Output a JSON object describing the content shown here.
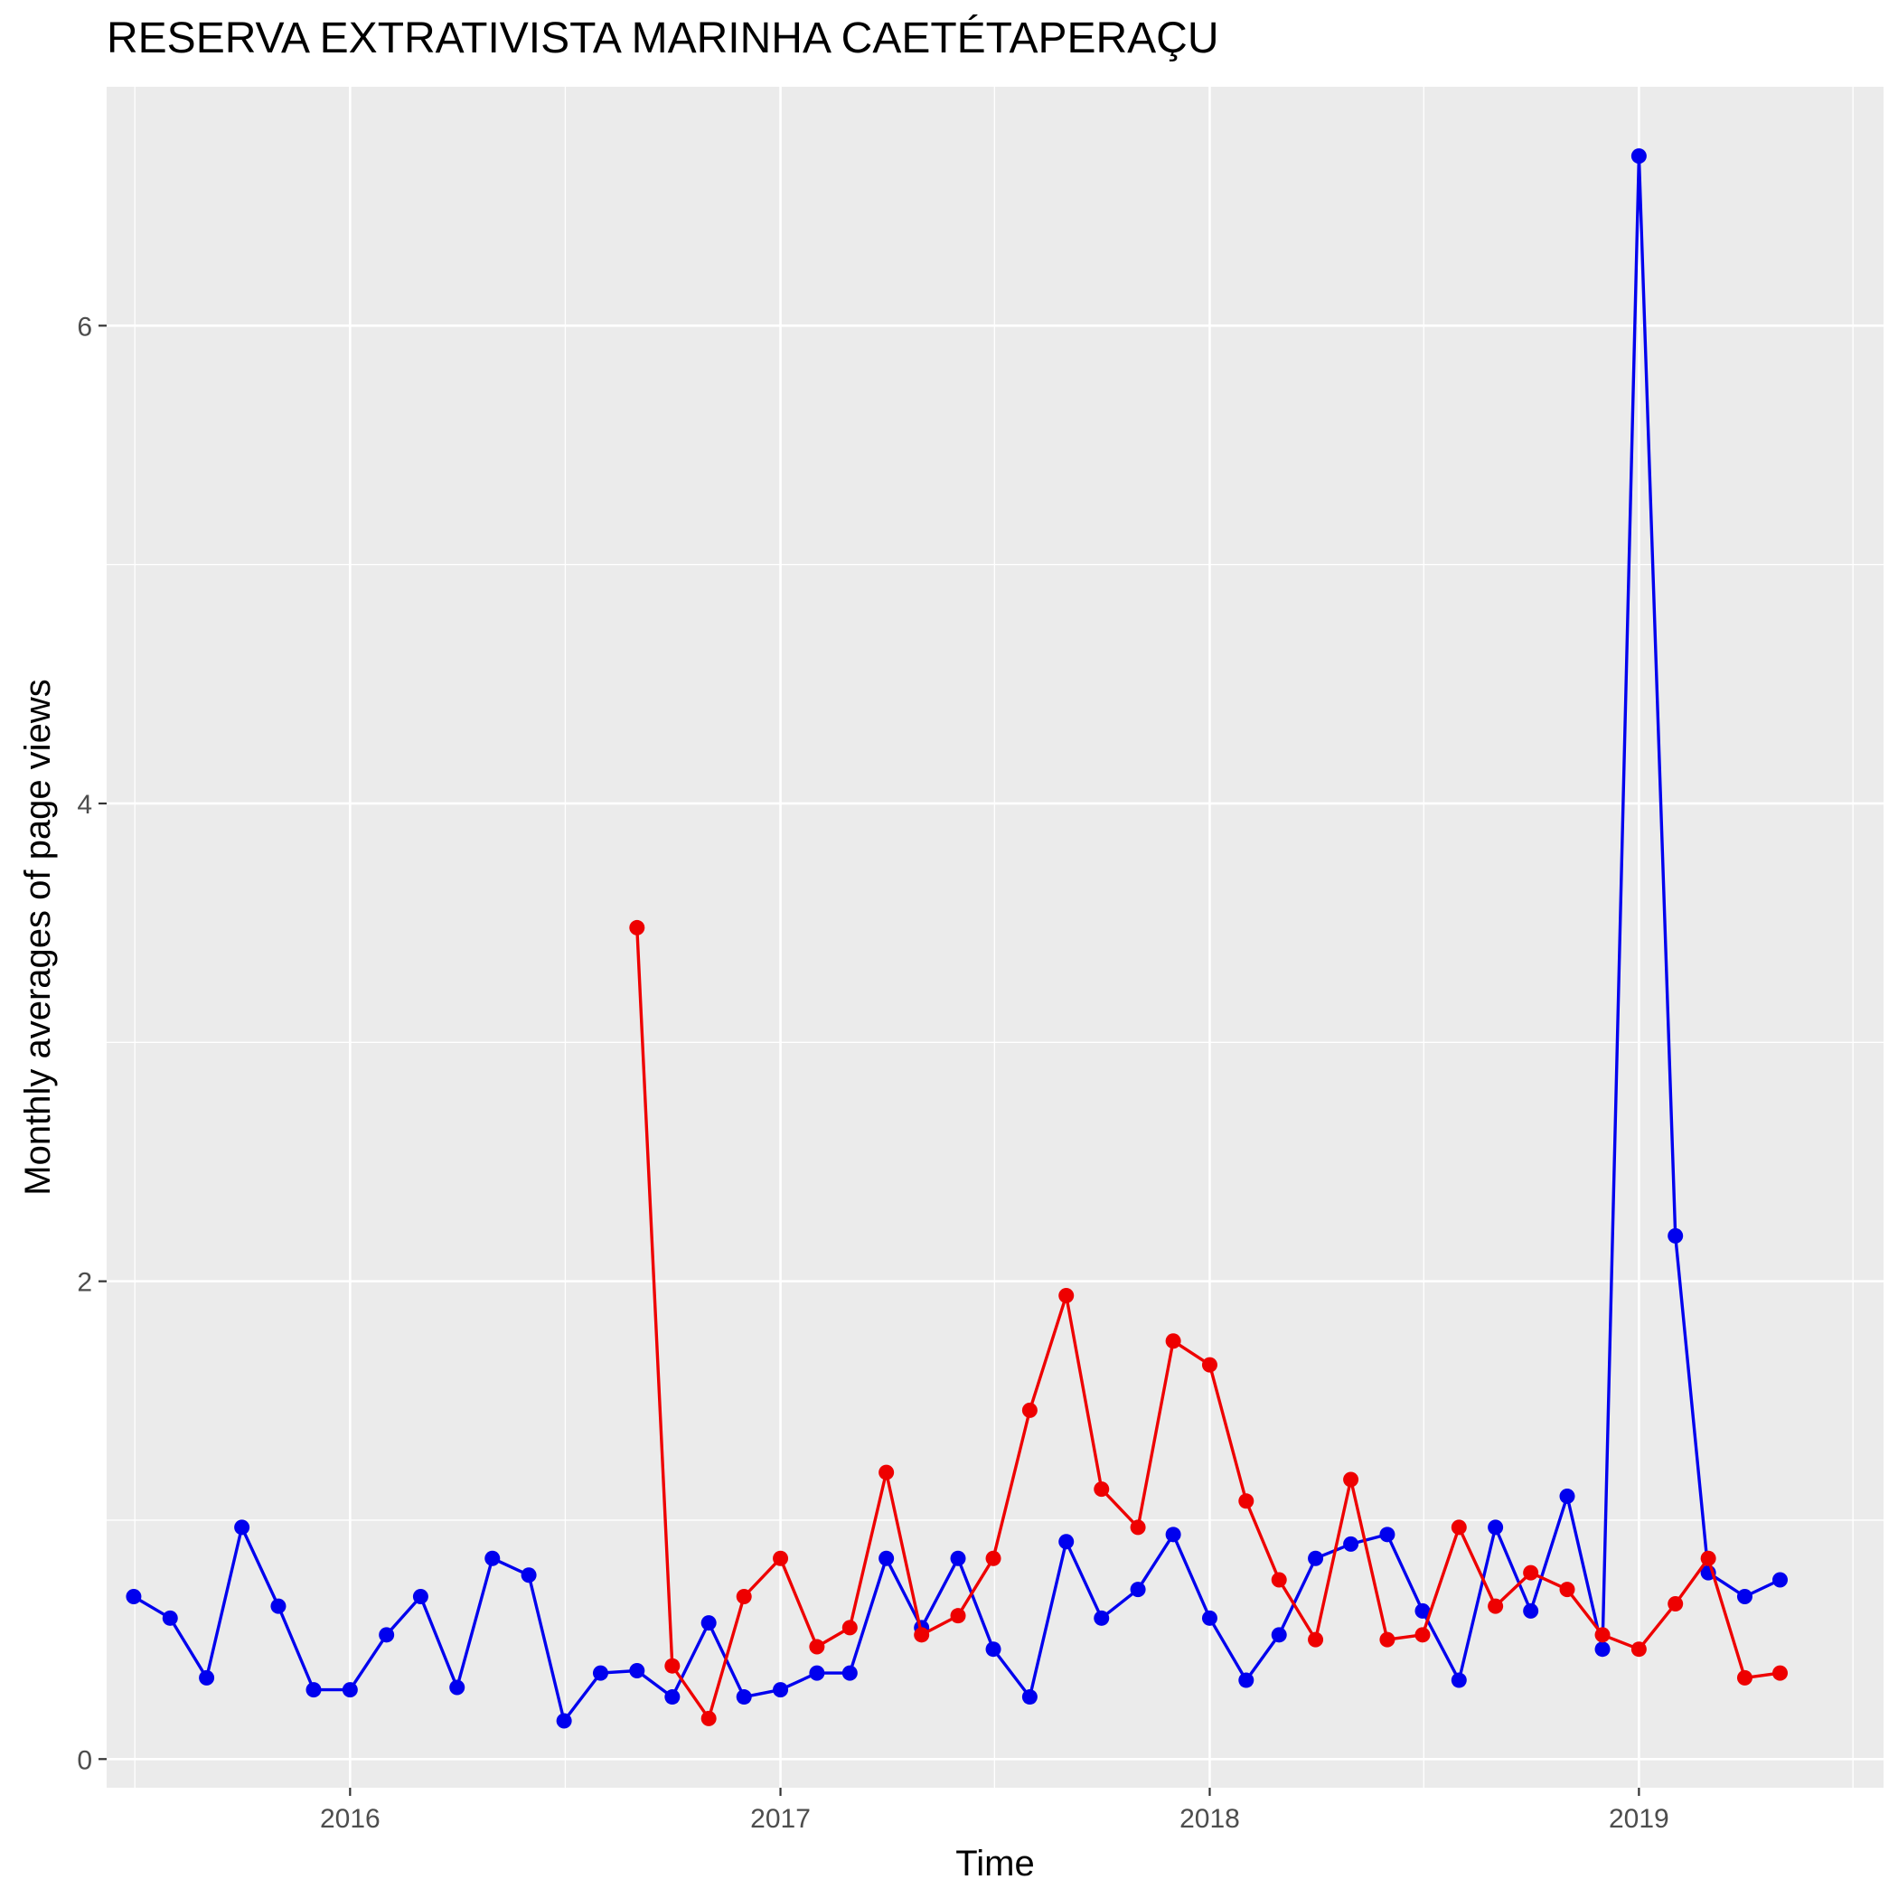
{
  "chart_data": {
    "type": "line",
    "title": "RESERVA EXTRATIVISTA MARINHA CAETÉTAPERAÇU",
    "xlabel": "Time",
    "ylabel": "Monthly averages of page views",
    "x_ticks": [
      "2016",
      "2017",
      "2018",
      "2019"
    ],
    "y_ticks": [
      "0",
      "2",
      "4",
      "6"
    ],
    "xlim": [
      "2015-06-08",
      "2019-07-28"
    ],
    "ylim": [
      -0.12,
      7.0
    ],
    "grid": true,
    "legend": "none",
    "series": [
      {
        "color": "#0000ee",
        "points": [
          [
            "2015-07-01",
            0.68
          ],
          [
            "2015-08-01",
            0.59
          ],
          [
            "2015-09-01",
            0.34
          ],
          [
            "2015-10-01",
            0.97
          ],
          [
            "2015-11-01",
            0.64
          ],
          [
            "2015-12-01",
            0.29
          ],
          [
            "2016-01-01",
            0.29
          ],
          [
            "2016-02-01",
            0.52
          ],
          [
            "2016-03-01",
            0.68
          ],
          [
            "2016-04-01",
            0.3
          ],
          [
            "2016-05-01",
            0.84
          ],
          [
            "2016-06-01",
            0.77
          ],
          [
            "2016-07-01",
            0.16
          ],
          [
            "2016-08-01",
            0.36
          ],
          [
            "2016-09-01",
            0.37
          ],
          [
            "2016-10-01",
            0.26
          ],
          [
            "2016-11-01",
            0.57
          ],
          [
            "2016-12-01",
            0.26
          ],
          [
            "2017-01-01",
            0.29
          ],
          [
            "2017-02-01",
            0.36
          ],
          [
            "2017-03-01",
            0.36
          ],
          [
            "2017-04-01",
            0.84
          ],
          [
            "2017-05-01",
            0.55
          ],
          [
            "2017-06-01",
            0.84
          ],
          [
            "2017-07-01",
            0.46
          ],
          [
            "2017-08-01",
            0.26
          ],
          [
            "2017-09-01",
            0.91
          ],
          [
            "2017-10-01",
            0.59
          ],
          [
            "2017-11-01",
            0.71
          ],
          [
            "2017-12-01",
            0.94
          ],
          [
            "2018-01-01",
            0.59
          ],
          [
            "2018-02-01",
            0.33
          ],
          [
            "2018-03-01",
            0.52
          ],
          [
            "2018-04-01",
            0.84
          ],
          [
            "2018-05-01",
            0.9
          ],
          [
            "2018-06-01",
            0.94
          ],
          [
            "2018-07-01",
            0.62
          ],
          [
            "2018-08-01",
            0.33
          ],
          [
            "2018-09-01",
            0.97
          ],
          [
            "2018-10-01",
            0.62
          ],
          [
            "2018-11-01",
            1.1
          ],
          [
            "2018-12-01",
            0.46
          ],
          [
            "2019-01-01",
            6.71
          ],
          [
            "2019-02-01",
            2.19
          ],
          [
            "2019-03-01",
            0.78
          ],
          [
            "2019-04-01",
            0.68
          ],
          [
            "2019-05-01",
            0.75
          ]
        ]
      },
      {
        "color": "#ee0000",
        "points": [
          [
            "2016-09-01",
            3.48
          ],
          [
            "2016-10-01",
            0.39
          ],
          [
            "2016-11-01",
            0.17
          ],
          [
            "2016-12-01",
            0.68
          ],
          [
            "2017-01-01",
            0.84
          ],
          [
            "2017-02-01",
            0.47
          ],
          [
            "2017-03-01",
            0.55
          ],
          [
            "2017-04-01",
            1.2
          ],
          [
            "2017-05-01",
            0.52
          ],
          [
            "2017-06-01",
            0.6
          ],
          [
            "2017-07-01",
            0.84
          ],
          [
            "2017-08-01",
            1.46
          ],
          [
            "2017-09-01",
            1.94
          ],
          [
            "2017-10-01",
            1.13
          ],
          [
            "2017-11-01",
            0.97
          ],
          [
            "2017-12-01",
            1.75
          ],
          [
            "2018-01-01",
            1.65
          ],
          [
            "2018-02-01",
            1.08
          ],
          [
            "2018-03-01",
            0.75
          ],
          [
            "2018-04-01",
            0.5
          ],
          [
            "2018-05-01",
            1.17
          ],
          [
            "2018-06-01",
            0.5
          ],
          [
            "2018-07-01",
            0.52
          ],
          [
            "2018-08-01",
            0.97
          ],
          [
            "2018-09-01",
            0.64
          ],
          [
            "2018-10-01",
            0.78
          ],
          [
            "2018-11-01",
            0.71
          ],
          [
            "2018-12-01",
            0.52
          ],
          [
            "2019-01-01",
            0.46
          ],
          [
            "2019-02-01",
            0.65
          ],
          [
            "2019-03-01",
            0.84
          ],
          [
            "2019-04-01",
            0.34
          ],
          [
            "2019-05-01",
            0.36
          ]
        ]
      }
    ]
  }
}
